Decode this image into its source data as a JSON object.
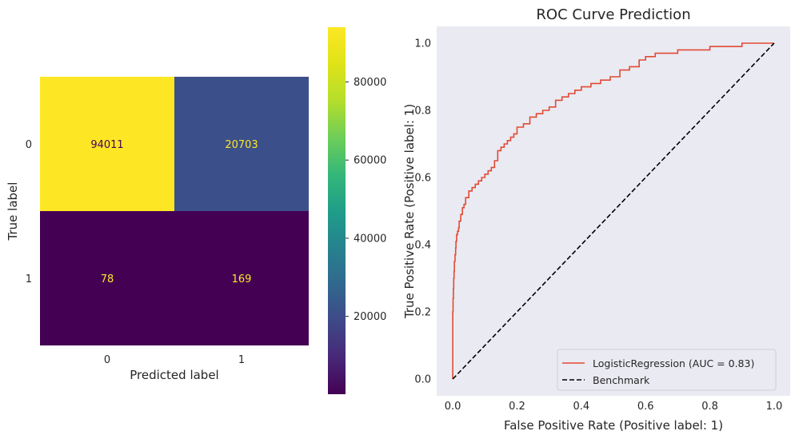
{
  "chart_data": [
    {
      "type": "heatmap",
      "title": "",
      "xlabel": "Predicted label",
      "ylabel": "True label",
      "x_categories": [
        "0",
        "1"
      ],
      "y_categories": [
        "0",
        "1"
      ],
      "matrix": [
        [
          94011,
          20703
        ],
        [
          78,
          169
        ]
      ],
      "colormap": "viridis",
      "colorbar": {
        "range": [
          78,
          94011
        ],
        "ticks": [
          20000,
          40000,
          60000,
          80000
        ],
        "tick_labels": [
          "20000",
          "40000",
          "60000",
          "80000"
        ]
      },
      "cell_text_colors": {
        "on_light": "#440154",
        "on_dark": "#fde725"
      },
      "grid": false
    },
    {
      "type": "line",
      "title": "ROC Curve Prediction",
      "xlabel": "False Positive Rate (Positive label: 1)",
      "ylabel": "True Positive Rate (Positive label: 1)",
      "xlim": [
        -0.05,
        1.05
      ],
      "ylim": [
        -0.05,
        1.05
      ],
      "xticks": [
        "0.0",
        "0.2",
        "0.4",
        "0.6",
        "0.8",
        "1.0"
      ],
      "yticks": [
        "0.0",
        "0.2",
        "0.4",
        "0.6",
        "0.8",
        "1.0"
      ],
      "background": "#eaeaf2",
      "grid": false,
      "legend_position": "bottom-right",
      "series": [
        {
          "name": "LogisticRegression (AUC = 0.83)",
          "color": "#e24a33",
          "style": "solid",
          "x": [
            0.0,
            0.0,
            0.001,
            0.002,
            0.003,
            0.004,
            0.005,
            0.007,
            0.009,
            0.01,
            0.012,
            0.015,
            0.018,
            0.02,
            0.025,
            0.03,
            0.035,
            0.04,
            0.05,
            0.06,
            0.07,
            0.08,
            0.09,
            0.1,
            0.11,
            0.12,
            0.13,
            0.14,
            0.15,
            0.16,
            0.17,
            0.18,
            0.19,
            0.2,
            0.22,
            0.24,
            0.26,
            0.28,
            0.3,
            0.32,
            0.34,
            0.36,
            0.38,
            0.4,
            0.43,
            0.46,
            0.49,
            0.52,
            0.55,
            0.58,
            0.6,
            0.63,
            0.66,
            0.7,
            0.75,
            0.8,
            0.85,
            0.9,
            0.95,
            1.0
          ],
          "y": [
            0.0,
            0.14,
            0.2,
            0.24,
            0.27,
            0.3,
            0.32,
            0.35,
            0.37,
            0.39,
            0.41,
            0.43,
            0.44,
            0.45,
            0.47,
            0.49,
            0.51,
            0.52,
            0.54,
            0.56,
            0.57,
            0.58,
            0.59,
            0.6,
            0.61,
            0.62,
            0.63,
            0.65,
            0.68,
            0.69,
            0.7,
            0.71,
            0.72,
            0.73,
            0.75,
            0.76,
            0.78,
            0.79,
            0.8,
            0.81,
            0.83,
            0.84,
            0.85,
            0.86,
            0.87,
            0.88,
            0.89,
            0.9,
            0.92,
            0.93,
            0.95,
            0.96,
            0.97,
            0.97,
            0.98,
            0.98,
            0.99,
            0.99,
            1.0,
            1.0
          ]
        },
        {
          "name": "Benchmark",
          "color": "#000000",
          "style": "dashed",
          "x": [
            0.0,
            1.0
          ],
          "y": [
            0.0,
            1.0
          ]
        }
      ]
    }
  ]
}
